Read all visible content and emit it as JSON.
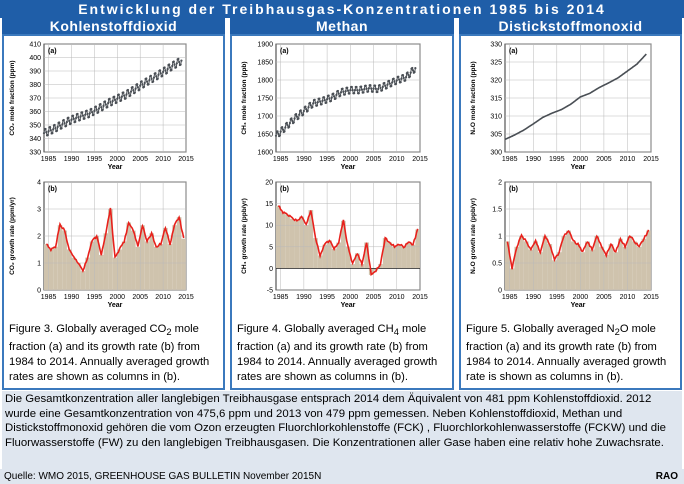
{
  "header": {
    "title": "Entwicklung der Treibhausgas-Konzentrationen 1985 bis 2014",
    "columns": [
      "Kohlenstoffdioxid",
      "Methan",
      "Distickstoffmonoxid"
    ]
  },
  "captions": [
    {
      "prefix": "Figure 3. Globally averaged CO",
      "sub": "2",
      "suffix": " mole fraction (a) and its growth rate (b) from 1984 to 2014. Annually averaged growth rates are shown as columns in (b)."
    },
    {
      "prefix": "Figure 4. Globally averaged CH",
      "sub": "4",
      "suffix": " mole fraction (a) and its growth rate (b) from 1984 to 2014. Annually averaged growth rates are shown as columns in (b)."
    },
    {
      "prefix": "Figure 5. Globally averaged N",
      "sub": "2",
      "suffix": "O mole fraction (a) and its growth rate (b) from 1984 to 2014. Annually averaged growth rate is shown as columns in (b)."
    }
  ],
  "description": "Die Gesamtkonzentration aller langlebigen Treibhausgase entsprach 2014 dem Äquivalent von 481 ppm Kohlenstoffdioxid. 2012 wurde eine Gesamtkonzentration von 475,6 ppm und 2013 von 479 ppm gemessen. Neben Kohlenstoffdioxid, Methan und Distickstoffmonoxid gehören die vom Ozon erzeugten Fluorchlorkohlenstoffe (FCK) , Fluorchlorkohlenwasserstoffe (FCKW) und die Fluorwasserstoffe (FW) zu den langlebigen Treibhausgasen. Die Konzentrationen aller Gase haben eine relativ hohe Zuwachsrate.",
  "source": "Quelle: WMO 2015, GREENHOUSE GAS BULLETIN  November 2015N",
  "credit": "RAO",
  "colors": {
    "header_bg": "#1f5ea8",
    "line_red": "#e8211c",
    "column_fill": "#cfc3ad",
    "series_gray": "#4a4f55",
    "desc_bg": "#dfe6ef"
  },
  "chart_data": [
    {
      "id": "co2a",
      "type": "line",
      "panel_label": "(a)",
      "xlabel": "Year",
      "ylabel": "CO₂ mole fraction (ppm)",
      "xlim": [
        1984,
        2015
      ],
      "ylim": [
        330,
        410
      ],
      "xticks": [
        1985,
        1990,
        1995,
        2000,
        2005,
        2010,
        2015
      ],
      "yticks": [
        330,
        340,
        350,
        360,
        370,
        380,
        390,
        400,
        410
      ],
      "x": [
        1984,
        1986,
        1988,
        1990,
        1992,
        1994,
        1996,
        1998,
        2000,
        2002,
        2004,
        2006,
        2008,
        2010,
        2012,
        2014
      ],
      "y": [
        344.0,
        346.8,
        350.5,
        353.9,
        356.4,
        358.7,
        362.2,
        366.2,
        369.4,
        372.6,
        376.9,
        381.2,
        385.1,
        389.3,
        393.7,
        397.7
      ]
    },
    {
      "id": "co2b",
      "type": "line",
      "panel_label": "(b)",
      "xlabel": "Year",
      "ylabel": "CO₂ growth rate (ppm/yr)",
      "xlim": [
        1984,
        2015
      ],
      "ylim": [
        0,
        4
      ],
      "xticks": [
        1985,
        1990,
        1995,
        2000,
        2005,
        2010,
        2015
      ],
      "yticks": [
        0,
        1,
        2,
        3,
        4
      ],
      "x": [
        1984,
        1985,
        1986,
        1987,
        1988,
        1989,
        1990,
        1991,
        1992,
        1993,
        1994,
        1995,
        1996,
        1997,
        1998,
        1999,
        2000,
        2001,
        2002,
        2003,
        2004,
        2005,
        2006,
        2007,
        2008,
        2009,
        2010,
        2011,
        2012,
        2013,
        2014
      ],
      "y": [
        1.7,
        1.5,
        1.6,
        2.4,
        2.2,
        1.5,
        1.2,
        1.0,
        0.7,
        1.2,
        1.8,
        2.0,
        1.3,
        2.1,
        3.0,
        1.2,
        1.5,
        1.8,
        2.5,
        2.2,
        1.6,
        2.4,
        1.8,
        2.1,
        1.6,
        1.7,
        2.3,
        1.7,
        2.4,
        2.7,
        1.9
      ]
    },
    {
      "id": "ch4a",
      "type": "line",
      "panel_label": "(a)",
      "xlabel": "Year",
      "ylabel": "CH₄ mole fraction (ppb)",
      "xlim": [
        1984,
        2015
      ],
      "ylim": [
        1600,
        1900
      ],
      "xticks": [
        1985,
        1990,
        1995,
        2000,
        2005,
        2010,
        2015
      ],
      "yticks": [
        1600,
        1650,
        1700,
        1750,
        1800,
        1850,
        1900
      ],
      "x": [
        1984,
        1986,
        1988,
        1990,
        1992,
        1994,
        1996,
        1998,
        2000,
        2002,
        2004,
        2006,
        2008,
        2010,
        2012,
        2014
      ],
      "y": [
        1645,
        1668,
        1693,
        1714,
        1735,
        1742,
        1751,
        1766,
        1772,
        1772,
        1777,
        1775,
        1787,
        1799,
        1808,
        1833
      ]
    },
    {
      "id": "ch4b",
      "type": "line",
      "panel_label": "(b)",
      "xlabel": "Year",
      "ylabel": "CH₄ growth rate (ppb/yr)",
      "xlim": [
        1984,
        2015
      ],
      "ylim": [
        -5,
        20
      ],
      "xticks": [
        1985,
        1990,
        1995,
        2000,
        2005,
        2010,
        2015
      ],
      "yticks": [
        -5,
        0,
        5,
        10,
        15,
        20
      ],
      "x": [
        1984,
        1985,
        1986,
        1987,
        1988,
        1989,
        1990,
        1991,
        1992,
        1993,
        1994,
        1995,
        1996,
        1997,
        1998,
        1999,
        2000,
        2001,
        2002,
        2003,
        2004,
        2005,
        2006,
        2007,
        2008,
        2009,
        2010,
        2011,
        2012,
        2013,
        2014
      ],
      "y": [
        14.5,
        13.0,
        12.5,
        11.5,
        11.0,
        12.0,
        10.0,
        13.5,
        7.0,
        3.0,
        5.5,
        6.5,
        4.5,
        6.0,
        11.0,
        5.0,
        1.0,
        3.5,
        1.0,
        6.0,
        -1.5,
        -0.5,
        1.0,
        7.0,
        6.0,
        5.0,
        5.5,
        5.0,
        6.0,
        5.5,
        9.0
      ]
    },
    {
      "id": "n2oa",
      "type": "line",
      "panel_label": "(a)",
      "xlabel": "Year",
      "ylabel": "N₂O mole fraction (ppb)",
      "xlim": [
        1984,
        2015
      ],
      "ylim": [
        300,
        330
      ],
      "xticks": [
        1985,
        1990,
        1995,
        2000,
        2005,
        2010,
        2015
      ],
      "yticks": [
        300,
        305,
        310,
        315,
        320,
        325,
        330
      ],
      "x": [
        1984,
        1986,
        1988,
        1990,
        1992,
        1994,
        1996,
        1998,
        2000,
        2002,
        2004,
        2006,
        2008,
        2010,
        2012,
        2014
      ],
      "y": [
        303.5,
        304.7,
        306.1,
        307.8,
        309.6,
        310.8,
        311.8,
        313.3,
        315.3,
        316.3,
        317.9,
        319.2,
        320.6,
        322.5,
        324.4,
        327.2
      ]
    },
    {
      "id": "n2ob",
      "type": "line",
      "panel_label": "(b)",
      "xlabel": "Year",
      "ylabel": "N₂O growth rate (ppb/yr)",
      "xlim": [
        1984,
        2015
      ],
      "ylim": [
        0,
        2
      ],
      "xticks": [
        1985,
        1990,
        1995,
        2000,
        2005,
        2010,
        2015
      ],
      "yticks": [
        0,
        0.5,
        1,
        1.5,
        2
      ],
      "x": [
        1984,
        1985,
        1986,
        1987,
        1988,
        1989,
        1990,
        1991,
        1992,
        1993,
        1994,
        1995,
        1996,
        1997,
        1998,
        1999,
        2000,
        2001,
        2002,
        2003,
        2004,
        2005,
        2006,
        2007,
        2008,
        2009,
        2010,
        2011,
        2012,
        2013,
        2014
      ],
      "y": [
        0.9,
        0.4,
        0.8,
        1.0,
        0.9,
        0.75,
        0.9,
        0.7,
        1.0,
        0.85,
        0.55,
        0.7,
        1.0,
        1.1,
        0.9,
        0.85,
        0.7,
        0.9,
        0.75,
        1.0,
        0.8,
        0.65,
        0.85,
        0.7,
        0.95,
        0.8,
        1.0,
        0.9,
        0.8,
        0.95,
        1.1
      ]
    }
  ]
}
